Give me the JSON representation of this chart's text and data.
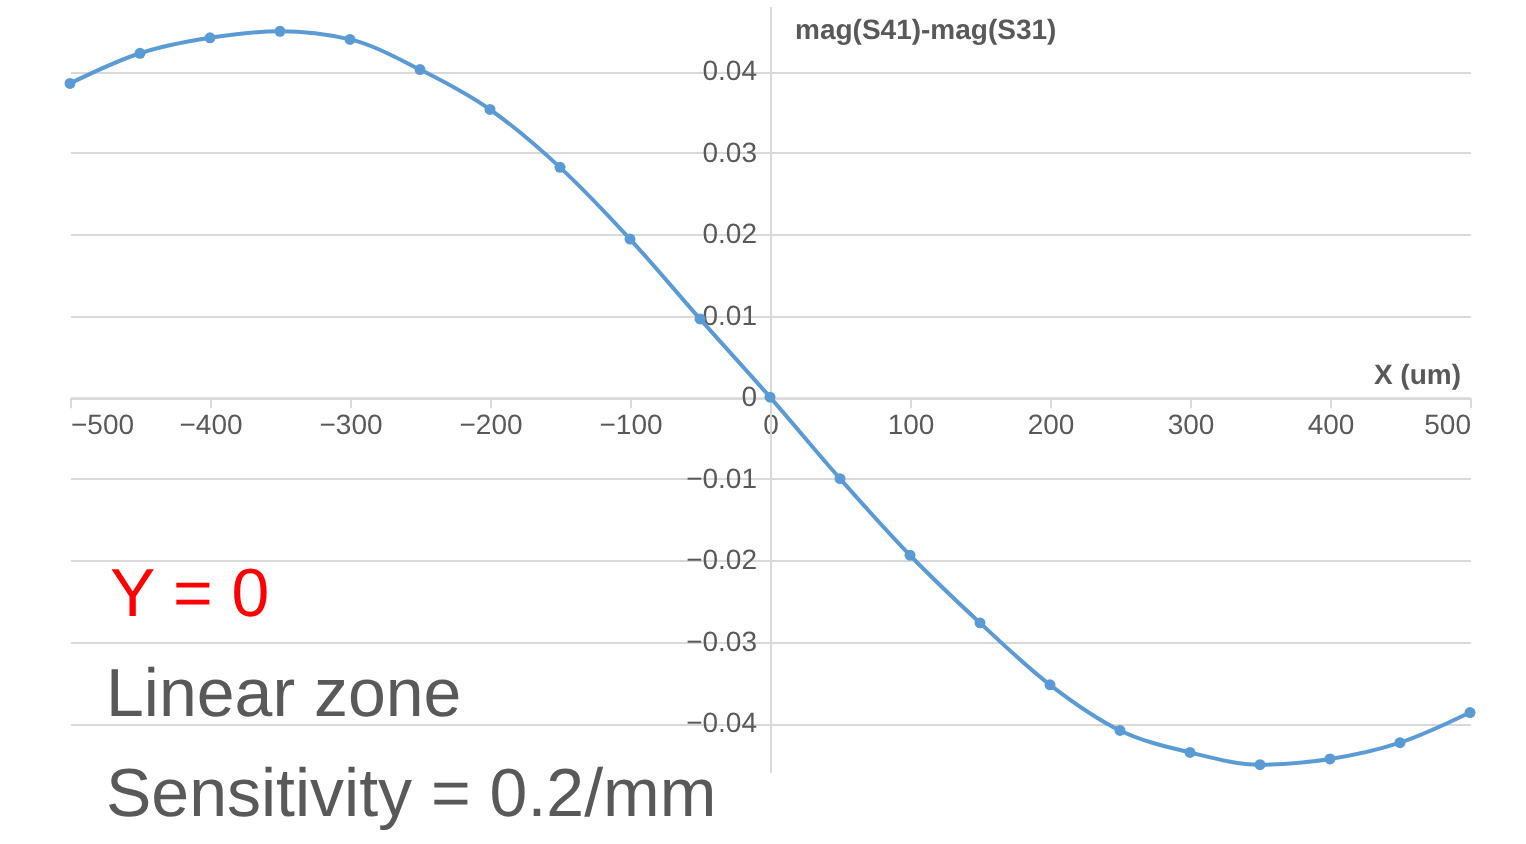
{
  "chart_data": {
    "type": "line",
    "xlabel": "X (um)",
    "ylabel": "mag(S41)-mag(S31)",
    "x": [
      -500,
      -450,
      -400,
      -350,
      -300,
      -250,
      -200,
      -150,
      -100,
      -50,
      0,
      50,
      100,
      150,
      200,
      250,
      300,
      350,
      400,
      450,
      500
    ],
    "series": [
      {
        "color": "#5b9bd5",
        "values": [
          0.0385,
          0.0422,
          0.0441,
          0.0449,
          0.0439,
          0.0402,
          0.0353,
          0.0282,
          0.0194,
          0.0096,
          0.0,
          -0.01,
          -0.0194,
          -0.0277,
          -0.0353,
          -0.0409,
          -0.0436,
          -0.0451,
          -0.0444,
          -0.0424,
          -0.0387
        ]
      }
    ],
    "xlim": [
      -500,
      500
    ],
    "ylim": [
      -0.046,
      0.048
    ],
    "xticks": [
      -500,
      -400,
      -300,
      -200,
      -100,
      0,
      100,
      200,
      300,
      400,
      500
    ],
    "yticks": [
      -0.04,
      -0.03,
      -0.02,
      -0.01,
      0,
      0.01,
      0.02,
      0.03,
      0.04
    ],
    "grid": "y",
    "marker": "circle",
    "line_style": "solid",
    "annotations": [
      "Y = 0",
      "Linear zone",
      "Sensitivity = 0.2/mm"
    ]
  }
}
